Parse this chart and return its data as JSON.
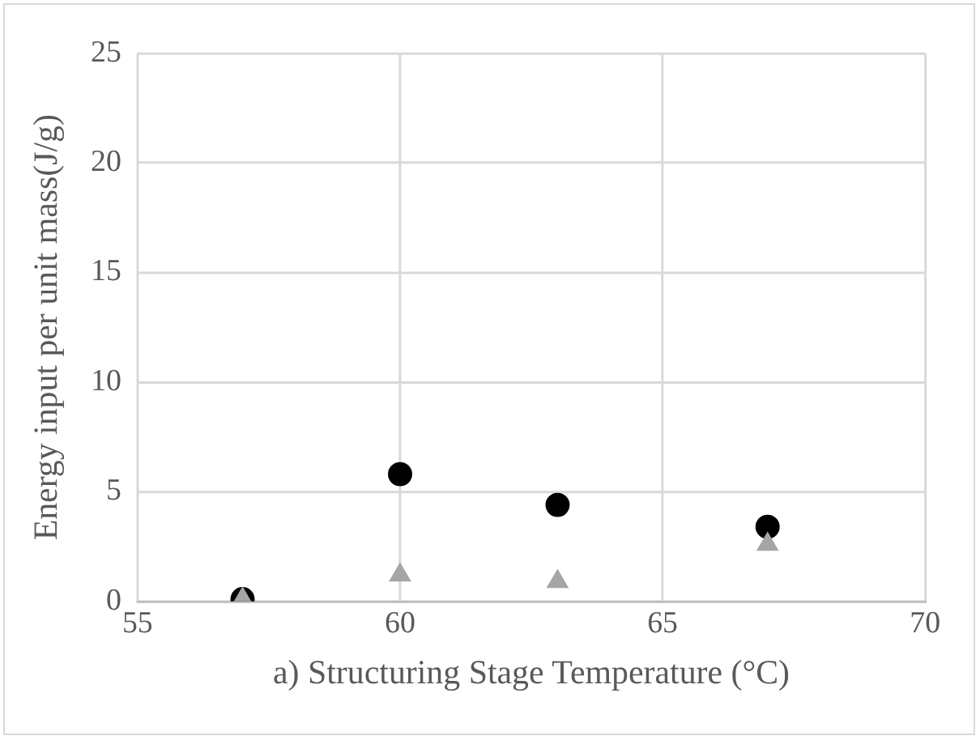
{
  "chart_data": {
    "type": "scatter",
    "xlabel": "a) Structuring Stage Temperature (°C)",
    "ylabel": "Energy input per unit mass(J/g)",
    "x": [
      57,
      60,
      63,
      67
    ],
    "series": [
      {
        "color": "#000000",
        "marker": "circle",
        "values": [
          0.1,
          5.8,
          4.4,
          3.4
        ]
      },
      {
        "color": "#a5a5a5",
        "marker": "triangle",
        "values": [
          0.1,
          1.2,
          0.9,
          2.6
        ]
      }
    ],
    "xlim": [
      55,
      70
    ],
    "xticks": [
      55,
      60,
      65,
      70
    ],
    "ylim": [
      0,
      25
    ],
    "yticks": [
      0,
      5,
      10,
      15,
      20,
      25
    ],
    "grid": true,
    "legend": false
  }
}
